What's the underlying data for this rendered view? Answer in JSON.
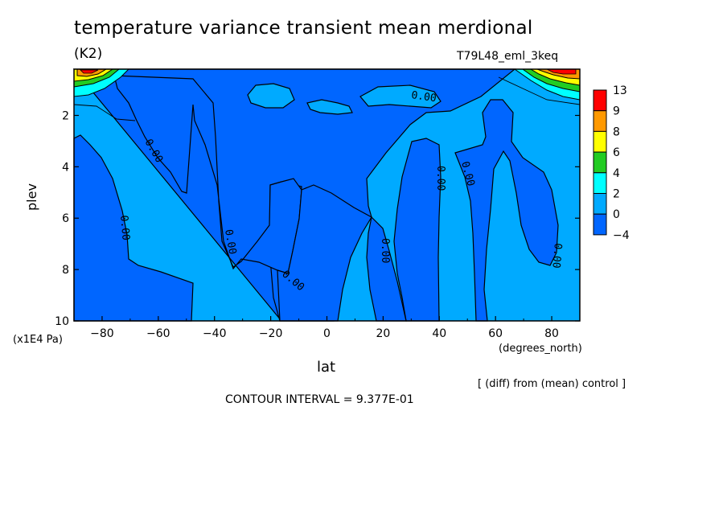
{
  "header": {
    "title": "temperature variance transient mean merdional",
    "units": "(K2)",
    "model": "T79L48_eml_3keq"
  },
  "footer": {
    "diff_note": "[ (diff) from (mean) control ]",
    "contour_interval": "CONTOUR INTERVAL = 9.377E-01"
  },
  "chart_data": {
    "type": "contour",
    "title": "temperature variance transient mean merdional",
    "units": "(K2)",
    "xlabel": "lat",
    "xunits": "(degrees_north)",
    "ylabel": "plev",
    "yunits": "(x1E4 Pa)",
    "xlim": [
      -90,
      90
    ],
    "ylim": [
      0.2,
      10
    ],
    "yaxis_inverted": true,
    "xticks": [
      -80,
      -60,
      -40,
      -20,
      0,
      20,
      40,
      60,
      80
    ],
    "xtick_labels": [
      "−80",
      "−60",
      "−40",
      "−20",
      "0",
      "20",
      "40",
      "60",
      "80"
    ],
    "yticks": [
      2,
      4,
      6,
      8,
      10
    ],
    "ytick_labels": [
      "2",
      "4",
      "6",
      "8",
      "10"
    ],
    "contour_interval": 0.9377,
    "contour_labels": [
      "0.00",
      "0.00",
      "0.00",
      "0.00",
      "0.00",
      "0.00",
      "0.00",
      "0.00",
      "0.00",
      "0.00"
    ],
    "colorbar": {
      "labels": [
        "13",
        "9",
        "8",
        "6",
        "4",
        "2",
        "0",
        "−4"
      ],
      "colors": [
        "#ff0000",
        "#ff9900",
        "#ffff00",
        "#22cc22",
        "#00ffff",
        "#00aaff",
        "#0066ff"
      ]
    },
    "fill_colors": {
      "low": "#0066ff",
      "mid": "#00aaff",
      "cyan": "#00ffff",
      "green": "#22cc22",
      "yellow": "#ffff00",
      "orange": "#ff9900",
      "red": "#ff0000"
    }
  }
}
